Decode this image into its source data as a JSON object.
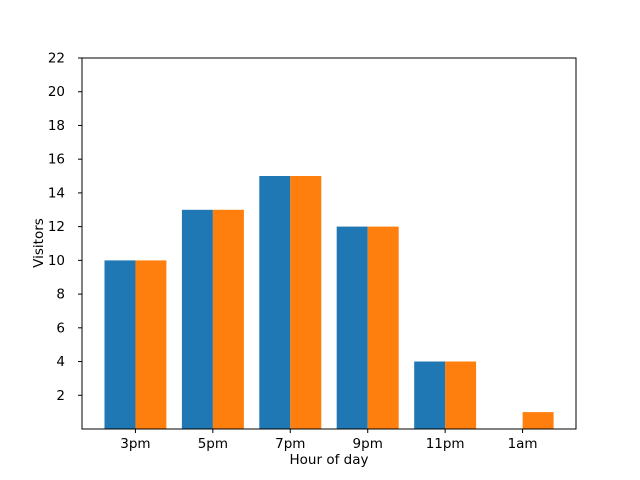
{
  "figure": {
    "background": "#ffffff"
  },
  "chart_data": {
    "type": "bar",
    "title": "",
    "xlabel": "Hour of day",
    "ylabel": "Visitors",
    "categories": [
      "3pm",
      "5pm",
      "7pm",
      "9pm",
      "11pm",
      "1am"
    ],
    "series": [
      {
        "name": "blue",
        "color": "#1f77b4",
        "values": [
          10,
          13,
          15,
          12,
          4,
          0
        ]
      },
      {
        "name": "orange",
        "color": "#ff7f0e",
        "values": [
          10,
          13,
          15,
          12,
          4,
          1
        ]
      }
    ],
    "bar_width": 0.4,
    "ylim": [
      0,
      22
    ],
    "yticks": [
      2,
      4,
      6,
      8,
      10,
      12,
      14,
      16,
      18,
      20,
      22
    ],
    "xlim": [
      -0.69,
      5.69
    ],
    "grid": false,
    "legend": false,
    "axis_color": "#000000",
    "text_color": "#000000"
  }
}
